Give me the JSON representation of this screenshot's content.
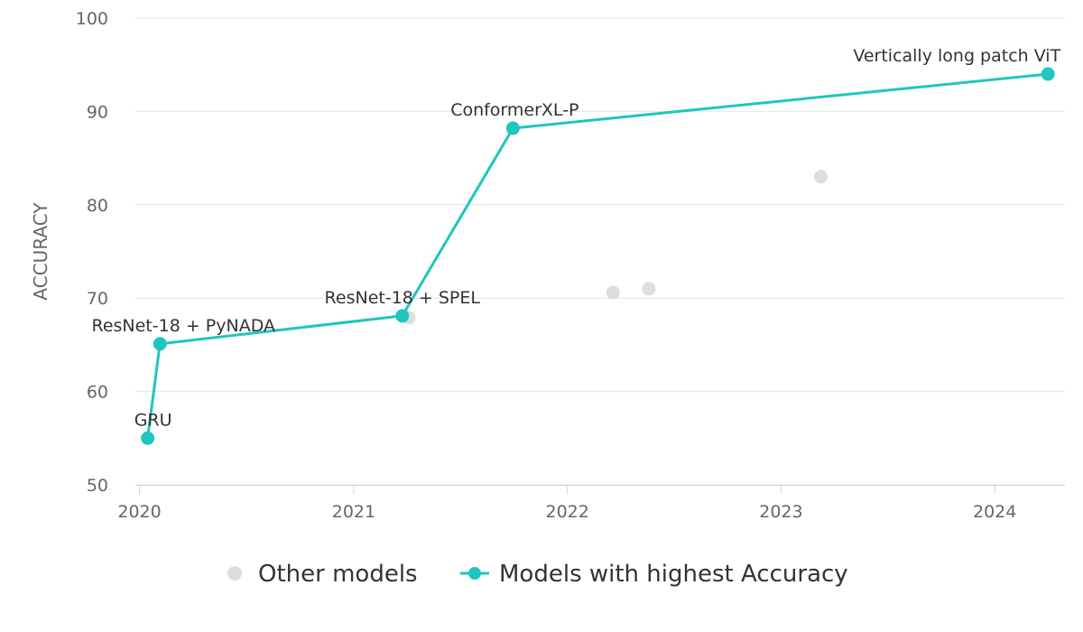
{
  "chart_data": {
    "type": "scatter",
    "ylabel": "ACCURACY",
    "xlabel": "",
    "title": "",
    "xlim": [
      "2019-12-25",
      "2024-04-30"
    ],
    "ylim": [
      50,
      100
    ],
    "x_ticks": [
      "2020",
      "2021",
      "2022",
      "2023",
      "2024"
    ],
    "y_ticks": [
      50,
      60,
      70,
      80,
      90,
      100
    ],
    "grid": true,
    "legend_position": "bottom",
    "series": [
      {
        "name": "Other models",
        "color": "#dddddd",
        "points": [
          {
            "x": "2021-04-05",
            "y": 67.9
          },
          {
            "x": "2022-03-20",
            "y": 70.6
          },
          {
            "x": "2022-05-20",
            "y": 71.0
          },
          {
            "x": "2023-03-10",
            "y": 83.0
          }
        ]
      },
      {
        "name": "Models with highest Accuracy",
        "color": "#21c5c0",
        "points": [
          {
            "x": "2020-01-15",
            "y": 55.0,
            "label": "GRU"
          },
          {
            "x": "2020-02-05",
            "y": 65.1,
            "label": "ResNet-18 + PyNADA"
          },
          {
            "x": "2021-03-25",
            "y": 68.1,
            "label": "ResNet-18 + SPEL"
          },
          {
            "x": "2021-09-30",
            "y": 88.2,
            "label": "ConformerXL-P"
          },
          {
            "x": "2024-04-01",
            "y": 94.0,
            "label": "Vertically long patch ViT"
          }
        ]
      }
    ]
  }
}
